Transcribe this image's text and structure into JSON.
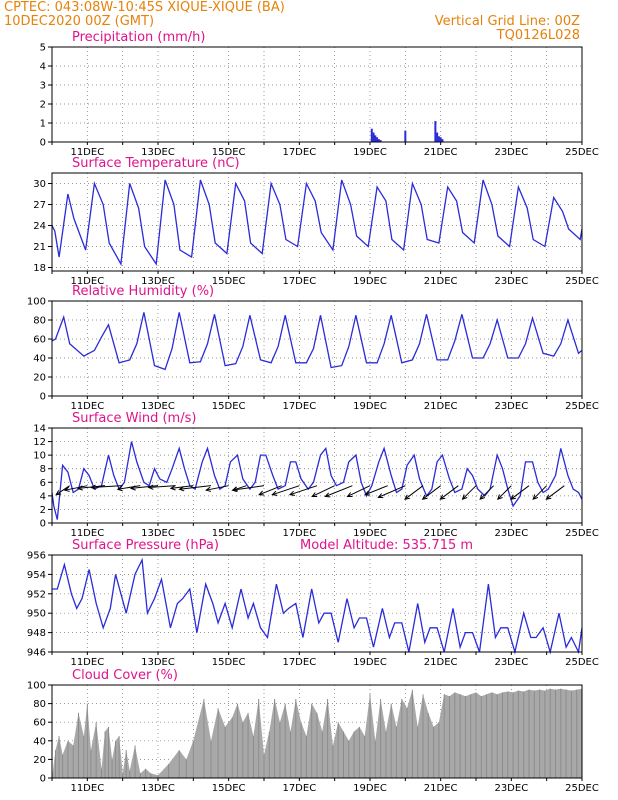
{
  "header": {
    "station": "CPTEC:   043:08W-10:45S  XIQUE-XIQUE (BA)",
    "run": "10DEC2020 00Z (GMT)",
    "grid_note": "Vertical Grid Line: 00Z",
    "code": "TQ0126L028"
  },
  "colors": {
    "header": "#e6820a",
    "title": "#e0138c",
    "line": "#2b2bd9",
    "cloud": "#a8a8a8",
    "wind": "#000000"
  },
  "x_ticks": [
    "11DEC",
    "13DEC",
    "15DEC",
    "17DEC",
    "19DEC",
    "21DEC",
    "23DEC",
    "25DEC"
  ],
  "chart_data": [
    {
      "id": "precip",
      "type": "bar",
      "title": "Precipitation (mm/h)",
      "ylim": [
        0,
        5
      ],
      "yticks": [
        0,
        1,
        2,
        3,
        4,
        5
      ],
      "x_unit": "days since 10DEC2020 00Z",
      "x": [
        9.05,
        9.1,
        9.15,
        9.2,
        9.25,
        9.3,
        10.0,
        10.85,
        10.9,
        10.95,
        11.0,
        11.05
      ],
      "values": [
        0.7,
        0.5,
        0.35,
        0.25,
        0.15,
        0.1,
        0.6,
        1.1,
        0.5,
        0.3,
        0.25,
        0.15
      ],
      "grid": true
    },
    {
      "id": "temp",
      "type": "line",
      "title": "Surface Temperature (nC)",
      "ylim": [
        17.5,
        31.5
      ],
      "yticks": [
        18,
        21,
        24,
        27,
        30
      ],
      "x": [
        0,
        0.08,
        0.2,
        0.45,
        0.62,
        0.95,
        1.2,
        1.45,
        1.62,
        1.95,
        2.2,
        2.45,
        2.62,
        2.95,
        3.2,
        3.45,
        3.62,
        3.95,
        4.2,
        4.45,
        4.62,
        4.95,
        5.2,
        5.45,
        5.62,
        5.95,
        6.2,
        6.45,
        6.62,
        6.95,
        7.2,
        7.45,
        7.62,
        7.95,
        8.2,
        8.45,
        8.62,
        8.95,
        9.2,
        9.45,
        9.62,
        9.95,
        10.2,
        10.45,
        10.62,
        10.95,
        11.2,
        11.45,
        11.62,
        11.95,
        12.2,
        12.45,
        12.62,
        12.95,
        13.2,
        13.45,
        13.62,
        13.95,
        14.2,
        14.45,
        14.62,
        14.95,
        15.0
      ],
      "values": [
        24,
        23.2,
        19.5,
        28.5,
        25,
        20.5,
        30,
        27,
        21.5,
        18.5,
        30,
        26.5,
        21,
        18.5,
        30.5,
        27,
        20.5,
        19.5,
        30.5,
        27,
        21.5,
        20,
        30,
        27.5,
        21.5,
        20,
        30,
        27,
        22,
        21,
        30,
        27.5,
        23,
        20.5,
        30.5,
        27,
        22.5,
        21,
        29.5,
        27.5,
        22,
        20.5,
        30,
        27,
        22,
        21.5,
        29.5,
        27.5,
        23,
        21.5,
        30.5,
        27,
        22.5,
        21,
        29.5,
        26.5,
        22,
        21,
        28,
        26,
        23.5,
        22,
        23.5
      ],
      "grid": true
    },
    {
      "id": "rh",
      "type": "line",
      "title": "Relative Humidity (%)",
      "ylim": [
        0,
        100
      ],
      "yticks": [
        0,
        20,
        40,
        60,
        80,
        100
      ],
      "x": [
        0,
        0.1,
        0.33,
        0.5,
        0.9,
        1.2,
        1.4,
        1.6,
        1.9,
        2.2,
        2.4,
        2.6,
        2.9,
        3.2,
        3.4,
        3.6,
        3.9,
        4.2,
        4.4,
        4.6,
        4.9,
        5.2,
        5.4,
        5.6,
        5.9,
        6.2,
        6.4,
        6.6,
        6.9,
        7.2,
        7.4,
        7.6,
        7.9,
        8.2,
        8.4,
        8.6,
        8.9,
        9.2,
        9.4,
        9.6,
        9.9,
        10.2,
        10.4,
        10.6,
        10.9,
        11.2,
        11.4,
        11.6,
        11.9,
        12.2,
        12.4,
        12.6,
        12.9,
        13.2,
        13.4,
        13.6,
        13.9,
        14.2,
        14.4,
        14.6,
        14.9,
        15.0
      ],
      "values": [
        58,
        60,
        83,
        55,
        42,
        48,
        62,
        75,
        35,
        38,
        55,
        88,
        32,
        28,
        50,
        88,
        35,
        36,
        55,
        86,
        32,
        34,
        52,
        85,
        38,
        35,
        52,
        85,
        35,
        35,
        50,
        85,
        30,
        32,
        52,
        85,
        35,
        35,
        55,
        85,
        35,
        38,
        55,
        86,
        38,
        38,
        58,
        86,
        40,
        40,
        55,
        80,
        40,
        40,
        55,
        82,
        45,
        42,
        55,
        80,
        45,
        48
      ],
      "grid": true
    },
    {
      "id": "wind",
      "type": "line",
      "title": "Surface Wind (m/s)",
      "ylim": [
        0,
        14
      ],
      "yticks": [
        0,
        2,
        4,
        6,
        8,
        10,
        12,
        14
      ],
      "x": [
        0,
        0.05,
        0.15,
        0.3,
        0.45,
        0.6,
        0.75,
        0.9,
        1.05,
        1.2,
        1.4,
        1.6,
        1.75,
        1.9,
        2.05,
        2.25,
        2.4,
        2.6,
        2.75,
        2.9,
        3.05,
        3.25,
        3.4,
        3.6,
        3.75,
        3.9,
        4.05,
        4.25,
        4.4,
        4.6,
        4.75,
        4.9,
        5.05,
        5.25,
        5.4,
        5.6,
        5.75,
        5.9,
        6.05,
        6.25,
        6.4,
        6.6,
        6.75,
        6.9,
        7.05,
        7.25,
        7.4,
        7.6,
        7.75,
        7.9,
        8.05,
        8.25,
        8.4,
        8.6,
        8.75,
        8.9,
        9.05,
        9.25,
        9.4,
        9.6,
        9.75,
        9.9,
        10.05,
        10.25,
        10.4,
        10.6,
        10.75,
        10.9,
        11.05,
        11.25,
        11.4,
        11.6,
        11.75,
        11.9,
        12.05,
        12.25,
        12.4,
        12.6,
        12.75,
        12.9,
        13.05,
        13.25,
        13.4,
        13.6,
        13.75,
        13.9,
        14.05,
        14.25,
        14.4,
        14.6,
        14.75,
        14.9,
        15.0
      ],
      "values": [
        4.5,
        2.5,
        0.5,
        8.5,
        7.5,
        4.5,
        5,
        8,
        7,
        5,
        5.5,
        10,
        7,
        5,
        6,
        12,
        9,
        6,
        5.5,
        8,
        6.5,
        6,
        8,
        11,
        8,
        5.5,
        5,
        9,
        11,
        7,
        5,
        5.5,
        9,
        10,
        6.5,
        5,
        6,
        10,
        10,
        7,
        5,
        5.5,
        9,
        9,
        6.5,
        5,
        6,
        10,
        11,
        7,
        5.5,
        6,
        9,
        10,
        6,
        4,
        5.5,
        9,
        11,
        7,
        4.5,
        5,
        8.5,
        10,
        6.5,
        4,
        5,
        9,
        10,
        6.5,
        4.5,
        5,
        8,
        7,
        5,
        4,
        5,
        10,
        8,
        5,
        2.5,
        4,
        9,
        9,
        6,
        4.5,
        5,
        7,
        11,
        7,
        5,
        4.5,
        3.5
      ],
      "grid": true
    },
    {
      "id": "pres",
      "type": "line",
      "title": "Surface Pressure (hPa)",
      "subtitle": "Model Altitude: 535.715 m",
      "ylim": [
        946,
        956
      ],
      "yticks": [
        946,
        948,
        950,
        952,
        954,
        956
      ],
      "x": [
        0,
        0.15,
        0.35,
        0.55,
        0.7,
        0.85,
        1.05,
        1.25,
        1.45,
        1.65,
        1.8,
        1.95,
        2.1,
        2.35,
        2.55,
        2.7,
        2.9,
        3.1,
        3.35,
        3.55,
        3.7,
        3.9,
        4.1,
        4.35,
        4.55,
        4.7,
        4.9,
        5.1,
        5.35,
        5.55,
        5.7,
        5.9,
        6.1,
        6.35,
        6.55,
        6.7,
        6.9,
        7.1,
        7.35,
        7.55,
        7.7,
        7.9,
        8.1,
        8.35,
        8.55,
        8.7,
        8.9,
        9.1,
        9.35,
        9.55,
        9.7,
        9.9,
        10.1,
        10.35,
        10.55,
        10.7,
        10.9,
        11.1,
        11.35,
        11.55,
        11.7,
        11.9,
        12.1,
        12.35,
        12.55,
        12.7,
        12.9,
        13.1,
        13.35,
        13.55,
        13.7,
        13.9,
        14.1,
        14.35,
        14.55,
        14.7,
        14.9,
        15.0
      ],
      "values": [
        952.5,
        952.5,
        955,
        952,
        950.5,
        951.5,
        954.5,
        951,
        948.5,
        950.5,
        954,
        952,
        950,
        954,
        955.5,
        950,
        951.5,
        953.5,
        948.5,
        951,
        951.5,
        952.5,
        948,
        953,
        951,
        949,
        951,
        948.5,
        952.5,
        949.5,
        951,
        948.5,
        947.5,
        953,
        950,
        950.5,
        951,
        947.5,
        952.5,
        949,
        950,
        950,
        947,
        951.5,
        948.5,
        949.5,
        949.5,
        946.5,
        950.5,
        947.5,
        949,
        949,
        946,
        951,
        947,
        948.5,
        948.5,
        946,
        950.5,
        946.5,
        948,
        948,
        946,
        953,
        947.5,
        948.5,
        948.5,
        946,
        950,
        947.5,
        947.5,
        948.5,
        946,
        950,
        946.5,
        947.5,
        946,
        948.5
      ],
      "grid": true
    },
    {
      "id": "cloud",
      "type": "bar",
      "title": "Cloud Cover (%)",
      "ylim": [
        0,
        100
      ],
      "yticks": [
        0,
        20,
        40,
        60,
        80,
        100
      ],
      "x": [
        0.1,
        0.2,
        0.3,
        0.45,
        0.6,
        0.75,
        0.9,
        1.0,
        1.1,
        1.25,
        1.4,
        1.5,
        1.6,
        1.7,
        1.8,
        1.9,
        2.0,
        2.1,
        2.2,
        2.35,
        2.5,
        2.65,
        2.8,
        3.0,
        3.3,
        3.6,
        3.8,
        4.0,
        4.3,
        4.5,
        4.7,
        4.9,
        5.1,
        5.25,
        5.4,
        5.55,
        5.7,
        5.85,
        6.0,
        6.15,
        6.3,
        6.45,
        6.6,
        6.75,
        6.9,
        7.05,
        7.2,
        7.35,
        7.5,
        7.65,
        7.8,
        7.95,
        8.1,
        8.25,
        8.4,
        8.55,
        8.7,
        8.85,
        9.0,
        9.15,
        9.3,
        9.45,
        9.6,
        9.75,
        9.9,
        10.05,
        10.2,
        10.35,
        10.5,
        10.65,
        10.8,
        10.95,
        11.1,
        11.25,
        11.4,
        11.55,
        11.7,
        11.85,
        12.0,
        12.15,
        12.3,
        12.45,
        12.6,
        12.75,
        12.9,
        13.05,
        13.2,
        13.35,
        13.5,
        13.65,
        13.8,
        13.95,
        14.1,
        14.25,
        14.4,
        14.55,
        14.7,
        14.85,
        15.0
      ],
      "values": [
        30,
        45,
        25,
        40,
        35,
        70,
        45,
        80,
        30,
        60,
        10,
        50,
        55,
        20,
        40,
        45,
        5,
        30,
        8,
        35,
        5,
        10,
        5,
        3,
        15,
        30,
        20,
        40,
        85,
        40,
        75,
        55,
        65,
        80,
        60,
        70,
        45,
        85,
        25,
        50,
        85,
        60,
        80,
        50,
        85,
        60,
        45,
        80,
        70,
        50,
        85,
        35,
        60,
        50,
        40,
        50,
        55,
        45,
        90,
        40,
        85,
        50,
        80,
        55,
        85,
        75,
        95,
        55,
        90,
        70,
        55,
        60,
        90,
        88,
        92,
        90,
        88,
        90,
        92,
        88,
        90,
        92,
        90,
        92,
        93,
        92,
        94,
        93,
        95,
        94,
        95,
        94,
        96,
        95,
        96,
        95,
        94,
        95,
        96
      ],
      "grid": true
    }
  ],
  "wind_barbs": {
    "y_anchor": 5.5,
    "x": [
      0.5,
      1.0,
      1.5,
      2.0,
      2.5,
      3.0,
      3.5,
      4.0,
      4.5,
      5.0,
      5.5,
      6.0,
      6.5,
      7.0,
      7.5,
      8.0,
      8.5,
      9.0,
      9.5,
      10.0,
      10.5,
      11.0,
      11.5,
      12.0,
      12.5,
      13.0,
      13.5,
      14.0,
      14.5
    ],
    "u": [
      -1.5,
      -2.5,
      -3,
      -3.5,
      -2.5,
      -3,
      -3,
      -2.5,
      -3.5,
      -2.5,
      -1.5,
      -3.5,
      -2.5,
      -3,
      -3,
      -2.5,
      -3,
      -2.5,
      -2.5,
      -3,
      -2,
      -2,
      -2,
      -1.5,
      -1.5,
      -1.5,
      -2,
      -1.5,
      -2
    ],
    "v": [
      -1,
      -0.5,
      -0.3,
      -0.2,
      -0.4,
      -0.3,
      -0.2,
      -0.3,
      -0.4,
      -0.5,
      -0.5,
      -0.5,
      -1,
      -1,
      -1,
      -1.2,
      -1.2,
      -1.2,
      -1,
      -1.3,
      -1.5,
      -1.5,
      -1.5,
      -1.5,
      -1.5,
      -1.5,
      -1.5,
      -1.5,
      -1.5
    ]
  }
}
